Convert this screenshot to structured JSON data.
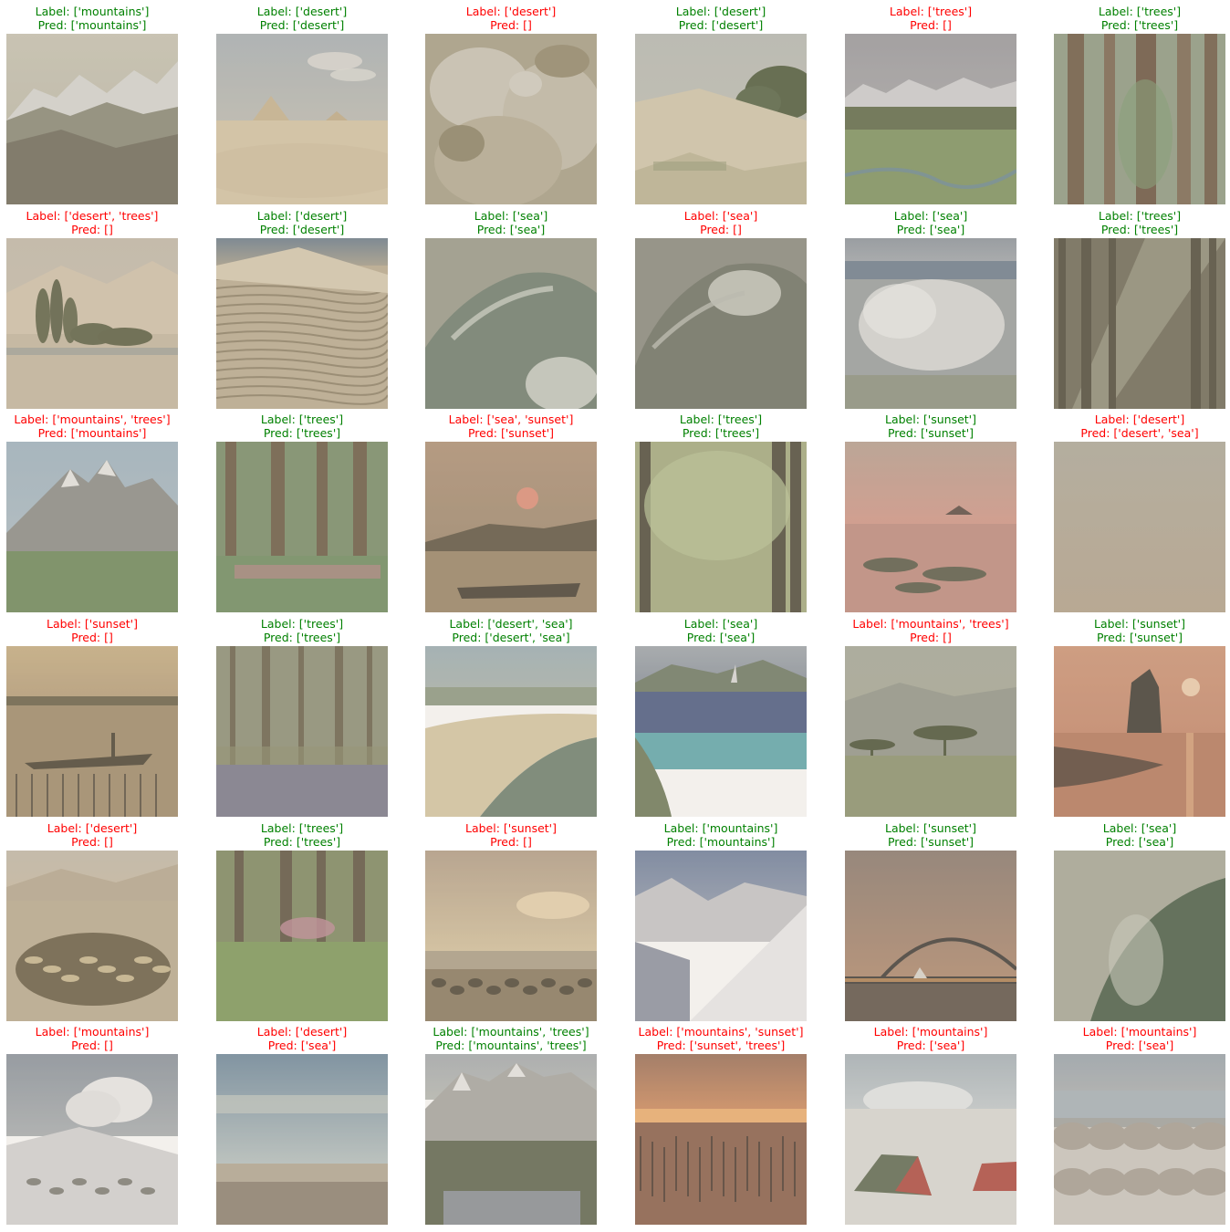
{
  "colors": {
    "correct": "#008000",
    "incorrect": "#ff0000"
  },
  "cells": [
    {
      "label": "Label: ['mountains']",
      "pred": "Pred: ['mountains']",
      "correct": true,
      "scene": "mountains-snow"
    },
    {
      "label": "Label: ['desert']",
      "pred": "Pred: ['desert']",
      "correct": true,
      "scene": "desert-pyramids"
    },
    {
      "label": "Label: ['desert']",
      "pred": "Pred: []",
      "correct": false,
      "scene": "rock-closeup"
    },
    {
      "label": "Label: ['desert']",
      "pred": "Pred: ['desert']",
      "correct": true,
      "scene": "dune-bushes"
    },
    {
      "label": "Label: ['trees']",
      "pred": "Pred: []",
      "correct": false,
      "scene": "meadow-mountains"
    },
    {
      "label": "Label: ['trees']",
      "pred": "Pred: ['trees']",
      "correct": true,
      "scene": "forest-trunks"
    },
    {
      "label": "Label: ['desert', 'trees']",
      "pred": "Pred: []",
      "correct": false,
      "scene": "desert-poplars"
    },
    {
      "label": "Label: ['desert']",
      "pred": "Pred: ['desert']",
      "correct": true,
      "scene": "sand-ripples"
    },
    {
      "label": "Label: ['sea']",
      "pred": "Pred: ['sea']",
      "correct": true,
      "scene": "wave-curl"
    },
    {
      "label": "Label: ['sea']",
      "pred": "Pred: []",
      "correct": false,
      "scene": "wave-dark"
    },
    {
      "label": "Label: ['sea']",
      "pred": "Pred: ['sea']",
      "correct": true,
      "scene": "wave-splash"
    },
    {
      "label": "Label: ['trees']",
      "pred": "Pred: ['trees']",
      "correct": true,
      "scene": "forest-rays"
    },
    {
      "label": "Label: ['mountains', 'trees']",
      "pred": "Pred: ['mountains']",
      "correct": false,
      "scene": "mountain-peaks"
    },
    {
      "label": "Label: ['trees']",
      "pred": "Pred: ['trees']",
      "correct": true,
      "scene": "forest-flowers"
    },
    {
      "label": "Label: ['sea', 'sunset']",
      "pred": "Pred: ['sunset']",
      "correct": false,
      "scene": "sunset-boat"
    },
    {
      "label": "Label: ['trees']",
      "pred": "Pred: ['trees']",
      "correct": true,
      "scene": "forest-green"
    },
    {
      "label": "Label: ['sunset']",
      "pred": "Pred: ['sunset']",
      "correct": true,
      "scene": "sunset-pink"
    },
    {
      "label": "Label: ['desert']",
      "pred": "Pred: ['desert', 'sea']",
      "correct": false,
      "scene": "haze"
    },
    {
      "label": "Label: ['sunset']",
      "pred": "Pred: []",
      "correct": false,
      "scene": "sunset-fisher"
    },
    {
      "label": "Label: ['trees']",
      "pred": "Pred: ['trees']",
      "correct": true,
      "scene": "bluebell-wood"
    },
    {
      "label": "Label: ['desert', 'sea']",
      "pred": "Pred: ['desert', 'sea']",
      "correct": true,
      "scene": "coast-dunes"
    },
    {
      "label": "Label: ['sea']",
      "pred": "Pred: ['sea']",
      "correct": true,
      "scene": "bay-sailboat"
    },
    {
      "label": "Label: ['mountains', 'trees']",
      "pred": "Pred: []",
      "correct": false,
      "scene": "savanna"
    },
    {
      "label": "Label: ['sunset']",
      "pred": "Pred: ['sunset']",
      "correct": true,
      "scene": "sunset-sun"
    },
    {
      "label": "Label: ['desert']",
      "pred": "Pred: []",
      "correct": false,
      "scene": "desert-plant"
    },
    {
      "label": "Label: ['trees']",
      "pred": "Pred: ['trees']",
      "correct": true,
      "scene": "garden-wood"
    },
    {
      "label": "Label: ['sunset']",
      "pred": "Pred: []",
      "correct": false,
      "scene": "sunset-shore"
    },
    {
      "label": "Label: ['mountains']",
      "pred": "Pred: ['mountains']",
      "correct": true,
      "scene": "snow-slope"
    },
    {
      "label": "Label: ['sunset']",
      "pred": "Pred: ['sunset']",
      "correct": true,
      "scene": "harbour-bridge"
    },
    {
      "label": "Label: ['sea']",
      "pred": "Pred: ['sea']",
      "correct": true,
      "scene": "wave-green"
    },
    {
      "label": "Label: ['mountains']",
      "pred": "Pred: []",
      "correct": false,
      "scene": "snow-cloud"
    },
    {
      "label": "Label: ['desert']",
      "pred": "Pred: ['sea']",
      "correct": false,
      "scene": "flat-horizon"
    },
    {
      "label": "Label: ['mountains', 'trees']",
      "pred": "Pred: ['mountains', 'trees']",
      "correct": true,
      "scene": "alpine-lake"
    },
    {
      "label": "Label: ['mountains', 'sunset']",
      "pred": "Pred: ['sunset', 'trees']",
      "correct": false,
      "scene": "sunset-reeds"
    },
    {
      "label": "Label: ['mountains']",
      "pred": "Pred: ['sea']",
      "correct": false,
      "scene": "tents-snow"
    },
    {
      "label": "Label: ['mountains']",
      "pred": "Pred: ['sea']",
      "correct": false,
      "scene": "rocky-shore"
    }
  ]
}
